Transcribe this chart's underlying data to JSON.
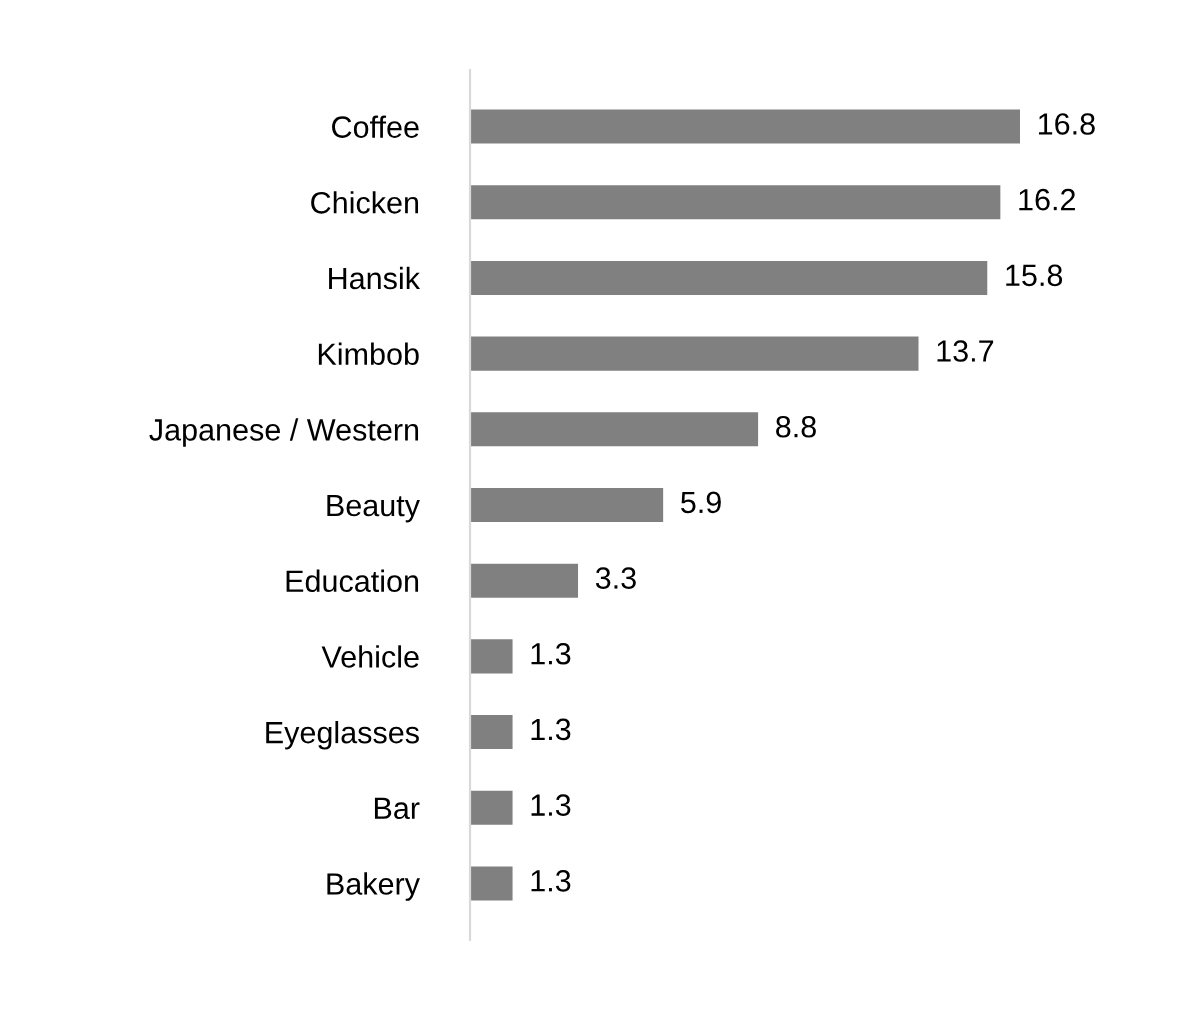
{
  "chart_data": {
    "type": "bar",
    "orientation": "horizontal",
    "categories": [
      "Coffee",
      "Chicken",
      "Hansik",
      "Kimbob",
      "Japanese / Western",
      "Beauty",
      "Education",
      "Vehicle",
      "Eyeglasses",
      "Bar",
      "Bakery"
    ],
    "values": [
      16.8,
      16.2,
      15.8,
      13.7,
      8.8,
      5.9,
      3.3,
      1.3,
      1.3,
      1.3,
      1.3
    ],
    "color": "#808080",
    "data_labels": true,
    "grid": false,
    "legend": false
  }
}
